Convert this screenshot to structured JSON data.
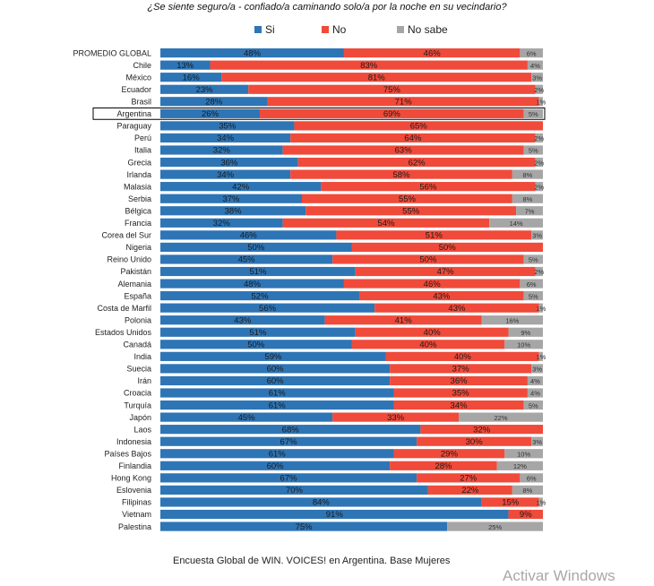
{
  "chart_data": {
    "type": "bar",
    "orientation": "horizontal",
    "stacked": true,
    "title": "¿Se siente seguro/a - confiado/a caminando solo/a por la noche en su vecindario?",
    "legend_position": "top-center",
    "categories": [
      "PROMEDIO GLOBAL",
      "Chile",
      "México",
      "Ecuador",
      "Brasil",
      "Argentina",
      "Paraguay",
      "Perú",
      "Italia",
      "Grecia",
      "Irlanda",
      "Malasia",
      "Serbia",
      "Bélgica",
      "Francia",
      "Corea del Sur",
      "Nigeria",
      "Reino Unido",
      "Pakistán",
      "Alemania",
      "España",
      "Costa de Marfil",
      "Polonia",
      "Estados Unidos",
      "Canadá",
      "India",
      "Suecia",
      "Irán",
      "Croacia",
      "Turquía",
      "Japón",
      "Laos",
      "Indonesia",
      "Países Bajos",
      "Finlandia",
      "Hong Kong",
      "Eslovenia",
      "Filipinas",
      "Vietnam",
      "Palestina"
    ],
    "highlighted_category": "Argentina",
    "series": [
      {
        "name": "Si",
        "color": "#2e75b6",
        "label_color": "#1a1a1a",
        "values": [
          48,
          13,
          16,
          23,
          28,
          26,
          35,
          34,
          32,
          36,
          34,
          42,
          37,
          38,
          32,
          46,
          50,
          45,
          51,
          48,
          52,
          56,
          43,
          51,
          50,
          59,
          60,
          60,
          61,
          61,
          45,
          68,
          67,
          61,
          60,
          67,
          70,
          84,
          91,
          75
        ]
      },
      {
        "name": "No",
        "color": "#f04a3a",
        "label_color": "#1a1a1a",
        "values": [
          46,
          83,
          81,
          75,
          71,
          69,
          65,
          64,
          63,
          62,
          58,
          56,
          55,
          55,
          54,
          51,
          50,
          50,
          47,
          46,
          43,
          43,
          41,
          40,
          40,
          40,
          37,
          36,
          35,
          34,
          33,
          32,
          30,
          29,
          28,
          27,
          22,
          15,
          9,
          0
        ]
      },
      {
        "name": "No sabe",
        "color": "#a6a6a6",
        "label_color": "#333333",
        "values": [
          6,
          4,
          3,
          2,
          1,
          5,
          0,
          2,
          5,
          2,
          8,
          2,
          8,
          7,
          14,
          3,
          0,
          5,
          2,
          6,
          5,
          1,
          16,
          9,
          10,
          1,
          3,
          4,
          4,
          5,
          22,
          0,
          3,
          10,
          12,
          6,
          8,
          1,
          0,
          25
        ]
      }
    ],
    "labels": {
      "Si": [
        "48%",
        "13%",
        "16%",
        "23%",
        "28%",
        "26%",
        "35%",
        "34%",
        "32%",
        "36%",
        "34%",
        "42%",
        "37%",
        "38%",
        "32%",
        "46%",
        "50%",
        "45%",
        "51%",
        "48%",
        "52%",
        "56%",
        "43%",
        "51%",
        "50%",
        "59%",
        "60%",
        "60%",
        "61%",
        "61%",
        "45%",
        "68%",
        "67%",
        "61%",
        "60%",
        "67%",
        "70%",
        "84%",
        "91%",
        "75%"
      ],
      "No": [
        "46%",
        "83%",
        "81%",
        "75%",
        "71%",
        "69%",
        "65%",
        "64%",
        "63%",
        "62%",
        "58%",
        "56%",
        "55%",
        "55%",
        "54%",
        "51%",
        "50%",
        "50%",
        "47%",
        "46%",
        "43%",
        "43%",
        "41%",
        "40%",
        "40%",
        "40%",
        "37%",
        "36%",
        "35%",
        "34%",
        "33%",
        "32%",
        "30%",
        "29%",
        "28%",
        "27%",
        "22%",
        "15%",
        "9%",
        ""
      ],
      "No sabe": [
        "6%",
        "4%",
        "3%",
        "2%",
        "1%",
        "5%",
        "",
        "2%",
        "5%",
        "2%",
        "8%",
        "2%",
        "8%",
        "7%",
        "14%",
        "3%",
        "",
        "5%",
        "2%",
        "6%",
        "5%",
        "1%",
        "16%",
        "9%",
        "10%",
        "1%",
        "3%",
        "4%",
        "4%",
        "5%",
        "22%",
        "",
        "3%",
        "10%",
        "12%",
        "6%",
        "8%",
        "1%",
        "",
        "25%"
      ]
    },
    "xlim": [
      0,
      100
    ]
  },
  "footer": "Encuesta Global de WIN. VOICES! en Argentina. Base Mujeres",
  "watermark": "Activar Windows"
}
